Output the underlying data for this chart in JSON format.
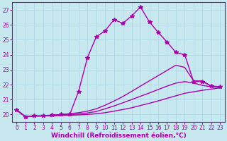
{
  "xlabel": "Windchill (Refroidissement éolien,°C)",
  "xlim": [
    -0.5,
    23.5
  ],
  "ylim": [
    19.5,
    27.5
  ],
  "yticks": [
    20,
    21,
    22,
    23,
    24,
    25,
    26,
    27
  ],
  "xticks": [
    0,
    1,
    2,
    3,
    4,
    5,
    6,
    7,
    8,
    9,
    10,
    11,
    12,
    13,
    14,
    15,
    16,
    17,
    18,
    19,
    20,
    21,
    22,
    23
  ],
  "bg_color": "#c8e8f0",
  "line_color": "#aa00aa",
  "grid_color": "#b0d8e8",
  "lines": [
    {
      "x": [
        0,
        1,
        2,
        3,
        4,
        5,
        6,
        7,
        8,
        9,
        10,
        11,
        12,
        13,
        14,
        15,
        16,
        17,
        18,
        19,
        20,
        21,
        22,
        23
      ],
      "y": [
        20.3,
        19.85,
        19.9,
        19.9,
        19.95,
        20.0,
        20.0,
        21.55,
        23.8,
        25.2,
        25.6,
        26.35,
        26.1,
        26.6,
        27.2,
        26.2,
        25.5,
        24.85,
        24.15,
        24.0,
        22.2,
        22.2,
        21.9,
        21.85
      ],
      "marker": "*",
      "markersize": 4,
      "linewidth": 1.0,
      "has_markers": true
    },
    {
      "x": [
        0,
        1,
        2,
        3,
        4,
        5,
        6,
        7,
        8,
        9,
        10,
        11,
        12,
        13,
        14,
        15,
        16,
        17,
        18,
        19,
        20,
        21,
        22,
        23
      ],
      "y": [
        20.3,
        19.85,
        19.9,
        19.9,
        19.95,
        20.0,
        20.05,
        20.12,
        20.22,
        20.38,
        20.62,
        20.9,
        21.2,
        21.55,
        21.9,
        22.25,
        22.6,
        22.95,
        23.3,
        23.15,
        22.25,
        22.25,
        21.9,
        21.85
      ],
      "marker": null,
      "linewidth": 1.0,
      "has_markers": false
    },
    {
      "x": [
        0,
        1,
        2,
        3,
        4,
        5,
        6,
        7,
        8,
        9,
        10,
        11,
        12,
        13,
        14,
        15,
        16,
        17,
        18,
        19,
        20,
        21,
        22,
        23
      ],
      "y": [
        20.3,
        19.85,
        19.9,
        19.9,
        19.93,
        19.96,
        19.99,
        20.03,
        20.1,
        20.2,
        20.38,
        20.57,
        20.78,
        21.0,
        21.22,
        21.44,
        21.67,
        21.9,
        22.1,
        22.2,
        22.1,
        21.95,
        21.85,
        21.82
      ],
      "marker": null,
      "linewidth": 1.0,
      "has_markers": false
    },
    {
      "x": [
        0,
        1,
        2,
        3,
        4,
        5,
        6,
        7,
        8,
        9,
        10,
        11,
        12,
        13,
        14,
        15,
        16,
        17,
        18,
        19,
        20,
        21,
        22,
        23
      ],
      "y": [
        20.3,
        19.85,
        19.9,
        19.9,
        19.91,
        19.93,
        19.95,
        19.97,
        20.0,
        20.05,
        20.12,
        20.22,
        20.33,
        20.45,
        20.6,
        20.75,
        20.91,
        21.08,
        21.25,
        21.42,
        21.52,
        21.62,
        21.7,
        21.78
      ],
      "marker": null,
      "linewidth": 1.0,
      "has_markers": false
    }
  ],
  "tick_fontsize": 5.5,
  "label_fontsize": 6.5,
  "label_fontweight": "bold"
}
